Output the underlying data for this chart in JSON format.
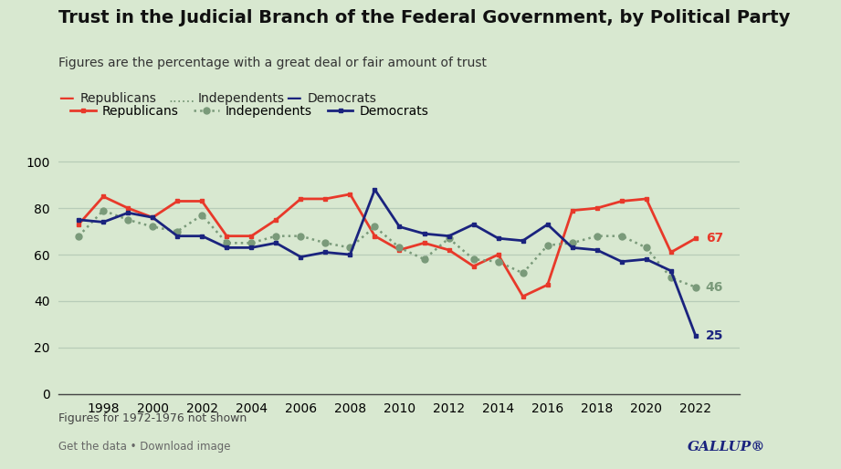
{
  "title": "Trust in the Judicial Branch of the Federal Government, by Political Party",
  "subtitle": "Figures are the percentage with a great deal or fair amount of trust",
  "footnote": "Figures for 1972-1976 not shown",
  "footer_left": "Get the data • Download image",
  "footer_right": "GALLUP®",
  "background_color": "#d8e8d0",
  "years": [
    1997,
    1998,
    1999,
    2000,
    2001,
    2002,
    2003,
    2004,
    2005,
    2006,
    2007,
    2008,
    2009,
    2010,
    2011,
    2012,
    2013,
    2014,
    2015,
    2016,
    2017,
    2018,
    2019,
    2020,
    2021,
    2022
  ],
  "republicans": [
    73,
    85,
    80,
    76,
    83,
    83,
    68,
    68,
    75,
    84,
    84,
    86,
    68,
    62,
    65,
    62,
    55,
    60,
    42,
    47,
    79,
    80,
    83,
    84,
    61,
    67
  ],
  "independents": [
    68,
    79,
    75,
    72,
    70,
    77,
    65,
    65,
    68,
    68,
    65,
    63,
    72,
    63,
    58,
    67,
    58,
    57,
    52,
    64,
    65,
    68,
    68,
    63,
    50,
    46
  ],
  "democrats": [
    75,
    74,
    78,
    76,
    68,
    68,
    63,
    63,
    65,
    59,
    61,
    60,
    88,
    72,
    69,
    68,
    73,
    67,
    66,
    73,
    63,
    62,
    57,
    58,
    53,
    25
  ],
  "end_labels": {
    "republicans": 67,
    "independents": 46,
    "democrats": 25
  },
  "ylim": [
    0,
    105
  ],
  "yticks": [
    0,
    20,
    40,
    60,
    80,
    100
  ],
  "rep_color": "#e8392a",
  "ind_color": "#7a9a7a",
  "dem_color": "#1a237e",
  "grid_color": "#b8ccb8",
  "title_fontsize": 14,
  "subtitle_fontsize": 10,
  "legend_fontsize": 10,
  "tick_fontsize": 10,
  "footnote_fontsize": 9,
  "footer_fontsize": 8.5
}
